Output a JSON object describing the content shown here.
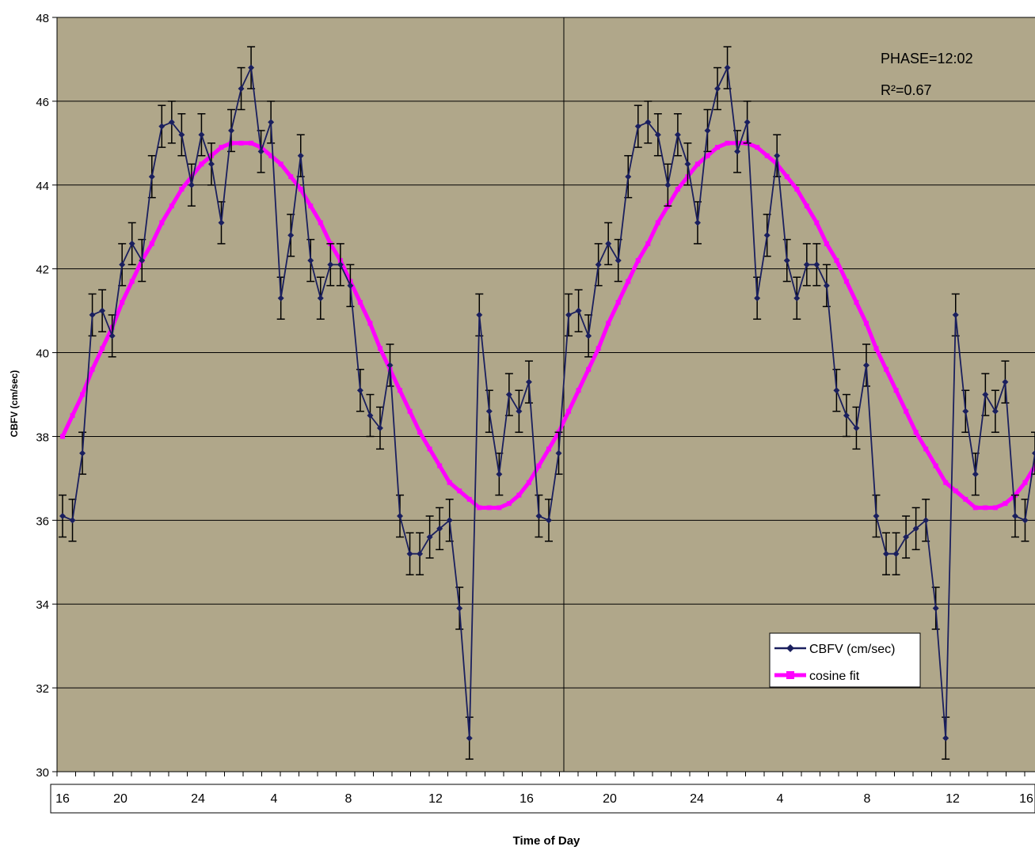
{
  "chart_data": {
    "type": "line",
    "title": "",
    "xlabel": "Time of Day",
    "ylabel": "CBFV (cm/sec)",
    "ylim": [
      30,
      48
    ],
    "yticks": [
      30,
      32,
      34,
      36,
      38,
      40,
      42,
      44,
      46,
      48
    ],
    "xtick_labels": [
      "16",
      "20",
      "24",
      "4",
      "8",
      "12",
      "16",
      "20",
      "24",
      "4",
      "8",
      "12",
      "16"
    ],
    "annotations": [
      "PHASE=12:02",
      "R²=0.67"
    ],
    "grid": true,
    "legend_position": "bottom-right",
    "colors": {
      "plot_background": "#b0a78a",
      "cbfv": "#1a1f5e",
      "cosine_fit": "#ff00ff",
      "grid": "#000000"
    },
    "series": [
      {
        "name": "CBFV (cm/sec)",
        "marker": "diamond",
        "error_bar": 0.5,
        "values": [
          36.1,
          36.0,
          37.6,
          40.9,
          41.0,
          40.4,
          42.1,
          42.6,
          42.2,
          44.2,
          45.4,
          45.5,
          45.2,
          44.0,
          45.2,
          44.5,
          43.1,
          45.3,
          46.3,
          46.8,
          44.8,
          45.5,
          41.3,
          42.8,
          44.7,
          42.2,
          41.3,
          42.1,
          42.1,
          41.6,
          39.1,
          38.5,
          38.2,
          39.7,
          36.1,
          35.2,
          35.2,
          35.6,
          35.8,
          36.0,
          33.9,
          30.8,
          40.9,
          38.6,
          37.1,
          39.0,
          38.6,
          39.3,
          36.1,
          36.0,
          37.6,
          40.9,
          41.0,
          40.4,
          42.1,
          42.6,
          42.2,
          44.2,
          45.4,
          45.5,
          45.2,
          44.0,
          45.2,
          44.5,
          43.1,
          45.3,
          46.3,
          46.8,
          44.8,
          45.5,
          41.3,
          42.8,
          44.7,
          42.2,
          41.3,
          42.1,
          42.1,
          41.6,
          39.1,
          38.5,
          38.2,
          39.7,
          36.1,
          35.2,
          35.2,
          35.6,
          35.8,
          36.0,
          33.9,
          30.8,
          40.9,
          38.6,
          37.1,
          39.0,
          38.6,
          39.3,
          36.1,
          36.0,
          37.6
        ]
      },
      {
        "name": "cosine fit",
        "marker": "square",
        "mesor": 40.6,
        "amplitude": 4.35,
        "period_points": 48,
        "values": [
          38.0,
          38.5,
          39.0,
          39.6,
          40.1,
          40.6,
          41.2,
          41.7,
          42.2,
          42.6,
          43.1,
          43.5,
          43.9,
          44.2,
          44.5,
          44.7,
          44.9,
          45.0,
          45.0,
          45.0,
          44.9,
          44.7,
          44.5,
          44.2,
          43.9,
          43.5,
          43.1,
          42.6,
          42.2,
          41.7,
          41.2,
          40.7,
          40.1,
          39.6,
          39.1,
          38.6,
          38.1,
          37.7,
          37.3,
          36.9,
          36.7,
          36.5,
          36.3,
          36.3,
          36.3,
          36.4,
          36.6,
          36.9,
          37.3,
          37.7,
          38.1,
          38.6,
          39.1,
          39.6,
          40.1,
          40.7,
          41.2,
          41.7,
          42.2,
          42.6,
          43.1,
          43.5,
          43.9,
          44.2,
          44.5,
          44.7,
          44.9,
          45.0,
          45.0,
          45.0,
          44.9,
          44.7,
          44.5,
          44.2,
          43.9,
          43.5,
          43.1,
          42.6,
          42.2,
          41.7,
          41.2,
          40.7,
          40.1,
          39.6,
          39.1,
          38.6,
          38.1,
          37.7,
          37.3,
          36.9,
          36.7,
          36.5,
          36.3,
          36.3,
          36.3,
          36.4,
          36.6,
          36.9,
          37.3,
          37.7,
          38.1
        ]
      }
    ]
  }
}
